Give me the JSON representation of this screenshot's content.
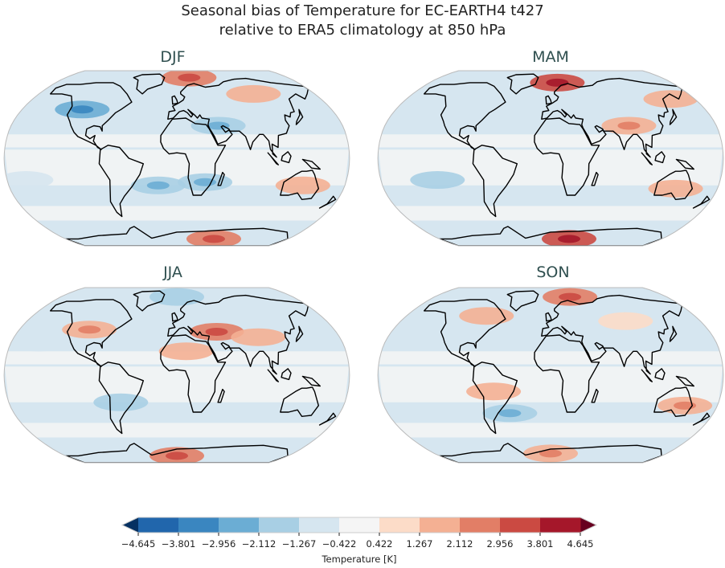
{
  "chart_data": {
    "type": "heatmap",
    "title": "Seasonal bias of Temperature for EC-EARTH4 t427",
    "subtitle": "relative to ERA5 climatology at 850 hPa",
    "projection": "Robinson",
    "panels": [
      {
        "name": "DJF",
        "bias_patches": [
          {
            "lon": 20,
            "lat": 78,
            "value": 2.5
          },
          {
            "lon": 100,
            "lat": 60,
            "value": 1.5
          },
          {
            "lon": -110,
            "lat": 45,
            "value": -2.5
          },
          {
            "lon": 45,
            "lat": 30,
            "value": -1.7
          },
          {
            "lon": 30,
            "lat": -22,
            "value": -2.0
          },
          {
            "lon": -20,
            "lat": -25,
            "value": -1.8
          },
          {
            "lon": 135,
            "lat": -25,
            "value": 1.5
          },
          {
            "lon": 60,
            "lat": -78,
            "value": 2.5
          },
          {
            "lon": -160,
            "lat": -20,
            "value": -1.0
          }
        ]
      },
      {
        "name": "MAM",
        "bias_patches": [
          {
            "lon": 10,
            "lat": 72,
            "value": 3.0
          },
          {
            "lon": 85,
            "lat": 30,
            "value": 2.0
          },
          {
            "lon": 150,
            "lat": 55,
            "value": 1.5
          },
          {
            "lon": -100,
            "lat": 40,
            "value": -1.2
          },
          {
            "lon": -120,
            "lat": -20,
            "value": -1.5
          },
          {
            "lon": 30,
            "lat": -78,
            "value": 3.0
          },
          {
            "lon": 135,
            "lat": -28,
            "value": 1.3
          }
        ]
      },
      {
        "name": "JJA",
        "bias_patches": [
          {
            "lon": -100,
            "lat": 42,
            "value": 2.0
          },
          {
            "lon": 45,
            "lat": 40,
            "value": 2.3
          },
          {
            "lon": 10,
            "lat": 22,
            "value": 1.5
          },
          {
            "lon": 90,
            "lat": 35,
            "value": 1.5
          },
          {
            "lon": -60,
            "lat": -25,
            "value": -1.5
          },
          {
            "lon": 0,
            "lat": 75,
            "value": -1.5
          },
          {
            "lon": 0,
            "lat": -78,
            "value": 2.5
          },
          {
            "lon": -150,
            "lat": 30,
            "value": -1.2
          }
        ]
      },
      {
        "name": "SON",
        "bias_patches": [
          {
            "lon": 30,
            "lat": 75,
            "value": 2.8
          },
          {
            "lon": -80,
            "lat": 55,
            "value": 1.3
          },
          {
            "lon": 90,
            "lat": 50,
            "value": 1.0
          },
          {
            "lon": -60,
            "lat": -15,
            "value": 1.5
          },
          {
            "lon": 145,
            "lat": -28,
            "value": 2.0
          },
          {
            "lon": -45,
            "lat": -35,
            "value": -1.7
          },
          {
            "lon": 0,
            "lat": -75,
            "value": 1.8
          }
        ]
      }
    ],
    "colorbar": {
      "label": "Temperature [K]",
      "ticks": [
        "−4.645",
        "−3.801",
        "−2.956",
        "−2.112",
        "−1.267",
        "−0.422",
        "0.422",
        "1.267",
        "2.112",
        "2.956",
        "3.801",
        "4.645"
      ],
      "levels": [
        -4.645,
        -3.801,
        -2.956,
        -2.112,
        -1.267,
        -0.422,
        0.422,
        1.267,
        2.112,
        2.956,
        3.801,
        4.645
      ],
      "colors": [
        "#2166ac",
        "#3a86c0",
        "#6badd4",
        "#a8cfe4",
        "#d6e6f0",
        "#f5f5f5",
        "#fcdcc8",
        "#f4b093",
        "#e27e66",
        "#cb4a42",
        "#a5172a"
      ],
      "extend_low": "#053061",
      "extend_high": "#67001f",
      "orientation": "horizontal",
      "extend": "both"
    }
  }
}
